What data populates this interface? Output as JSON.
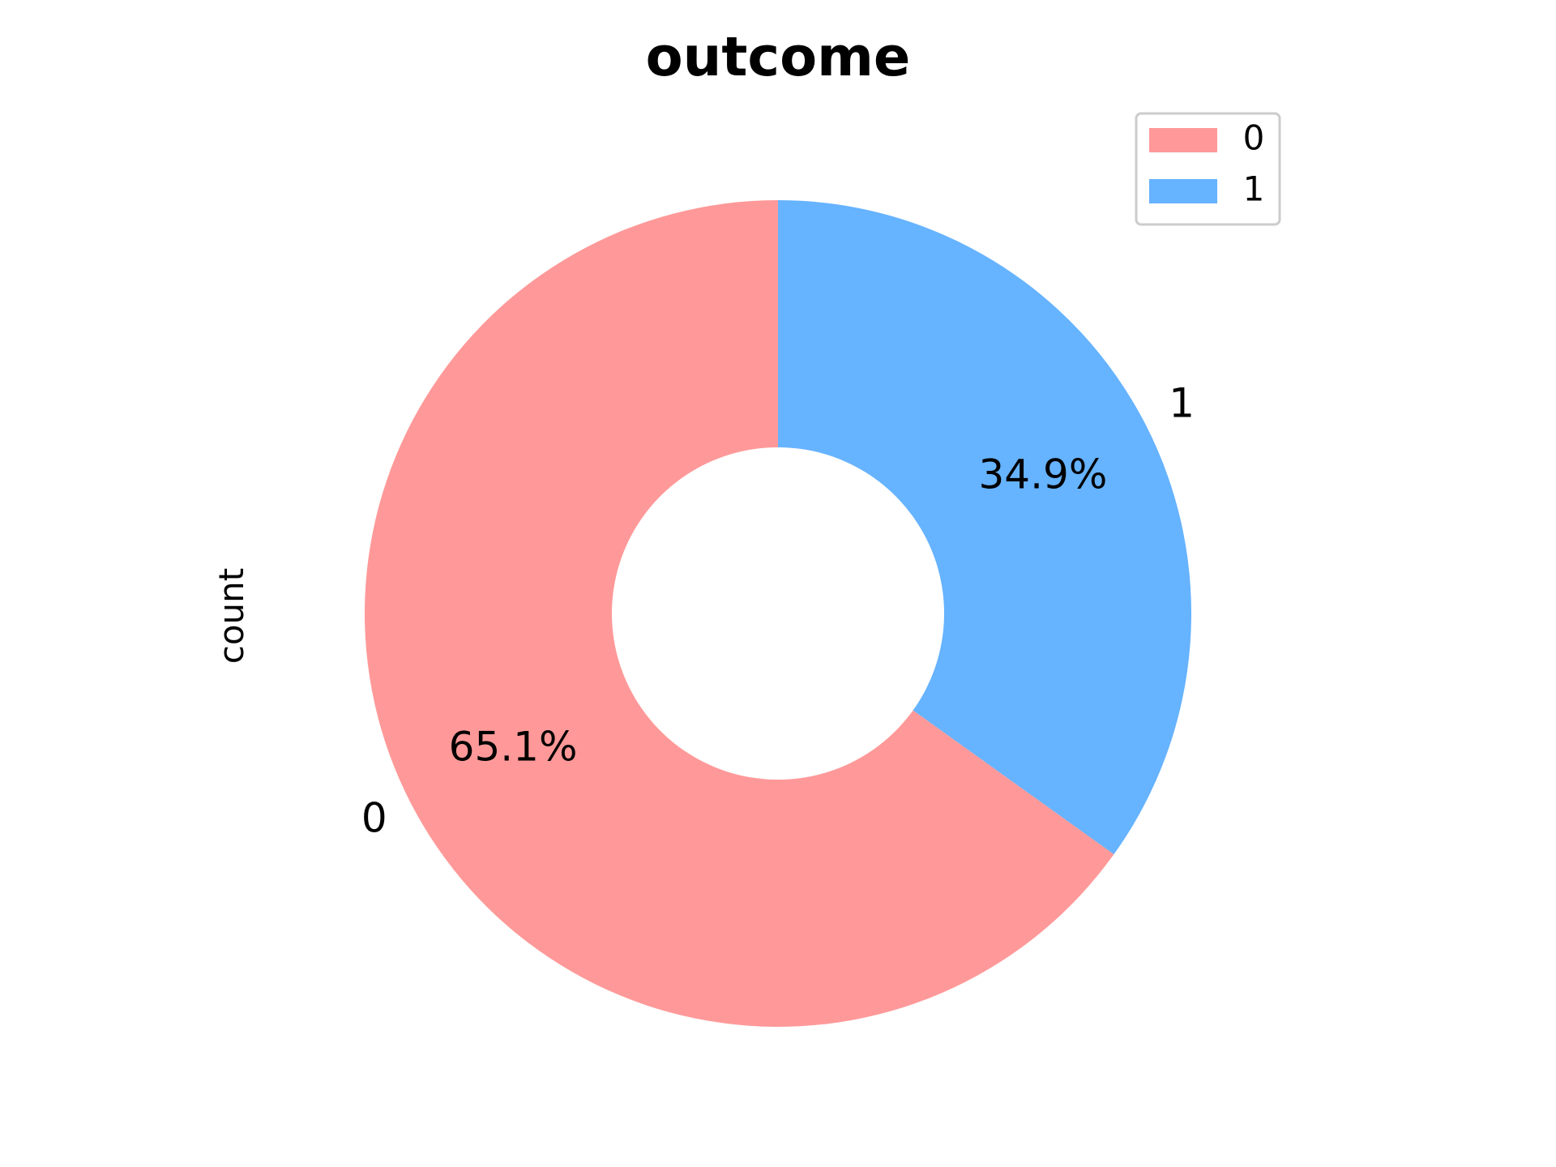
{
  "chart_data": {
    "type": "pie",
    "donut": true,
    "title": "outcome",
    "ylabel": "count",
    "xlabel": "",
    "categories": [
      "0",
      "1"
    ],
    "values": [
      65.1,
      34.9
    ],
    "percent_labels": [
      "65.1%",
      "34.9%"
    ],
    "colors": [
      "#ff9999",
      "#66b3ff"
    ],
    "start_angle_deg": 90,
    "direction": "clockwise-from-top for slice 1",
    "legend": {
      "placement": "top-right",
      "entries": [
        "0",
        "1"
      ]
    },
    "grid": false
  }
}
